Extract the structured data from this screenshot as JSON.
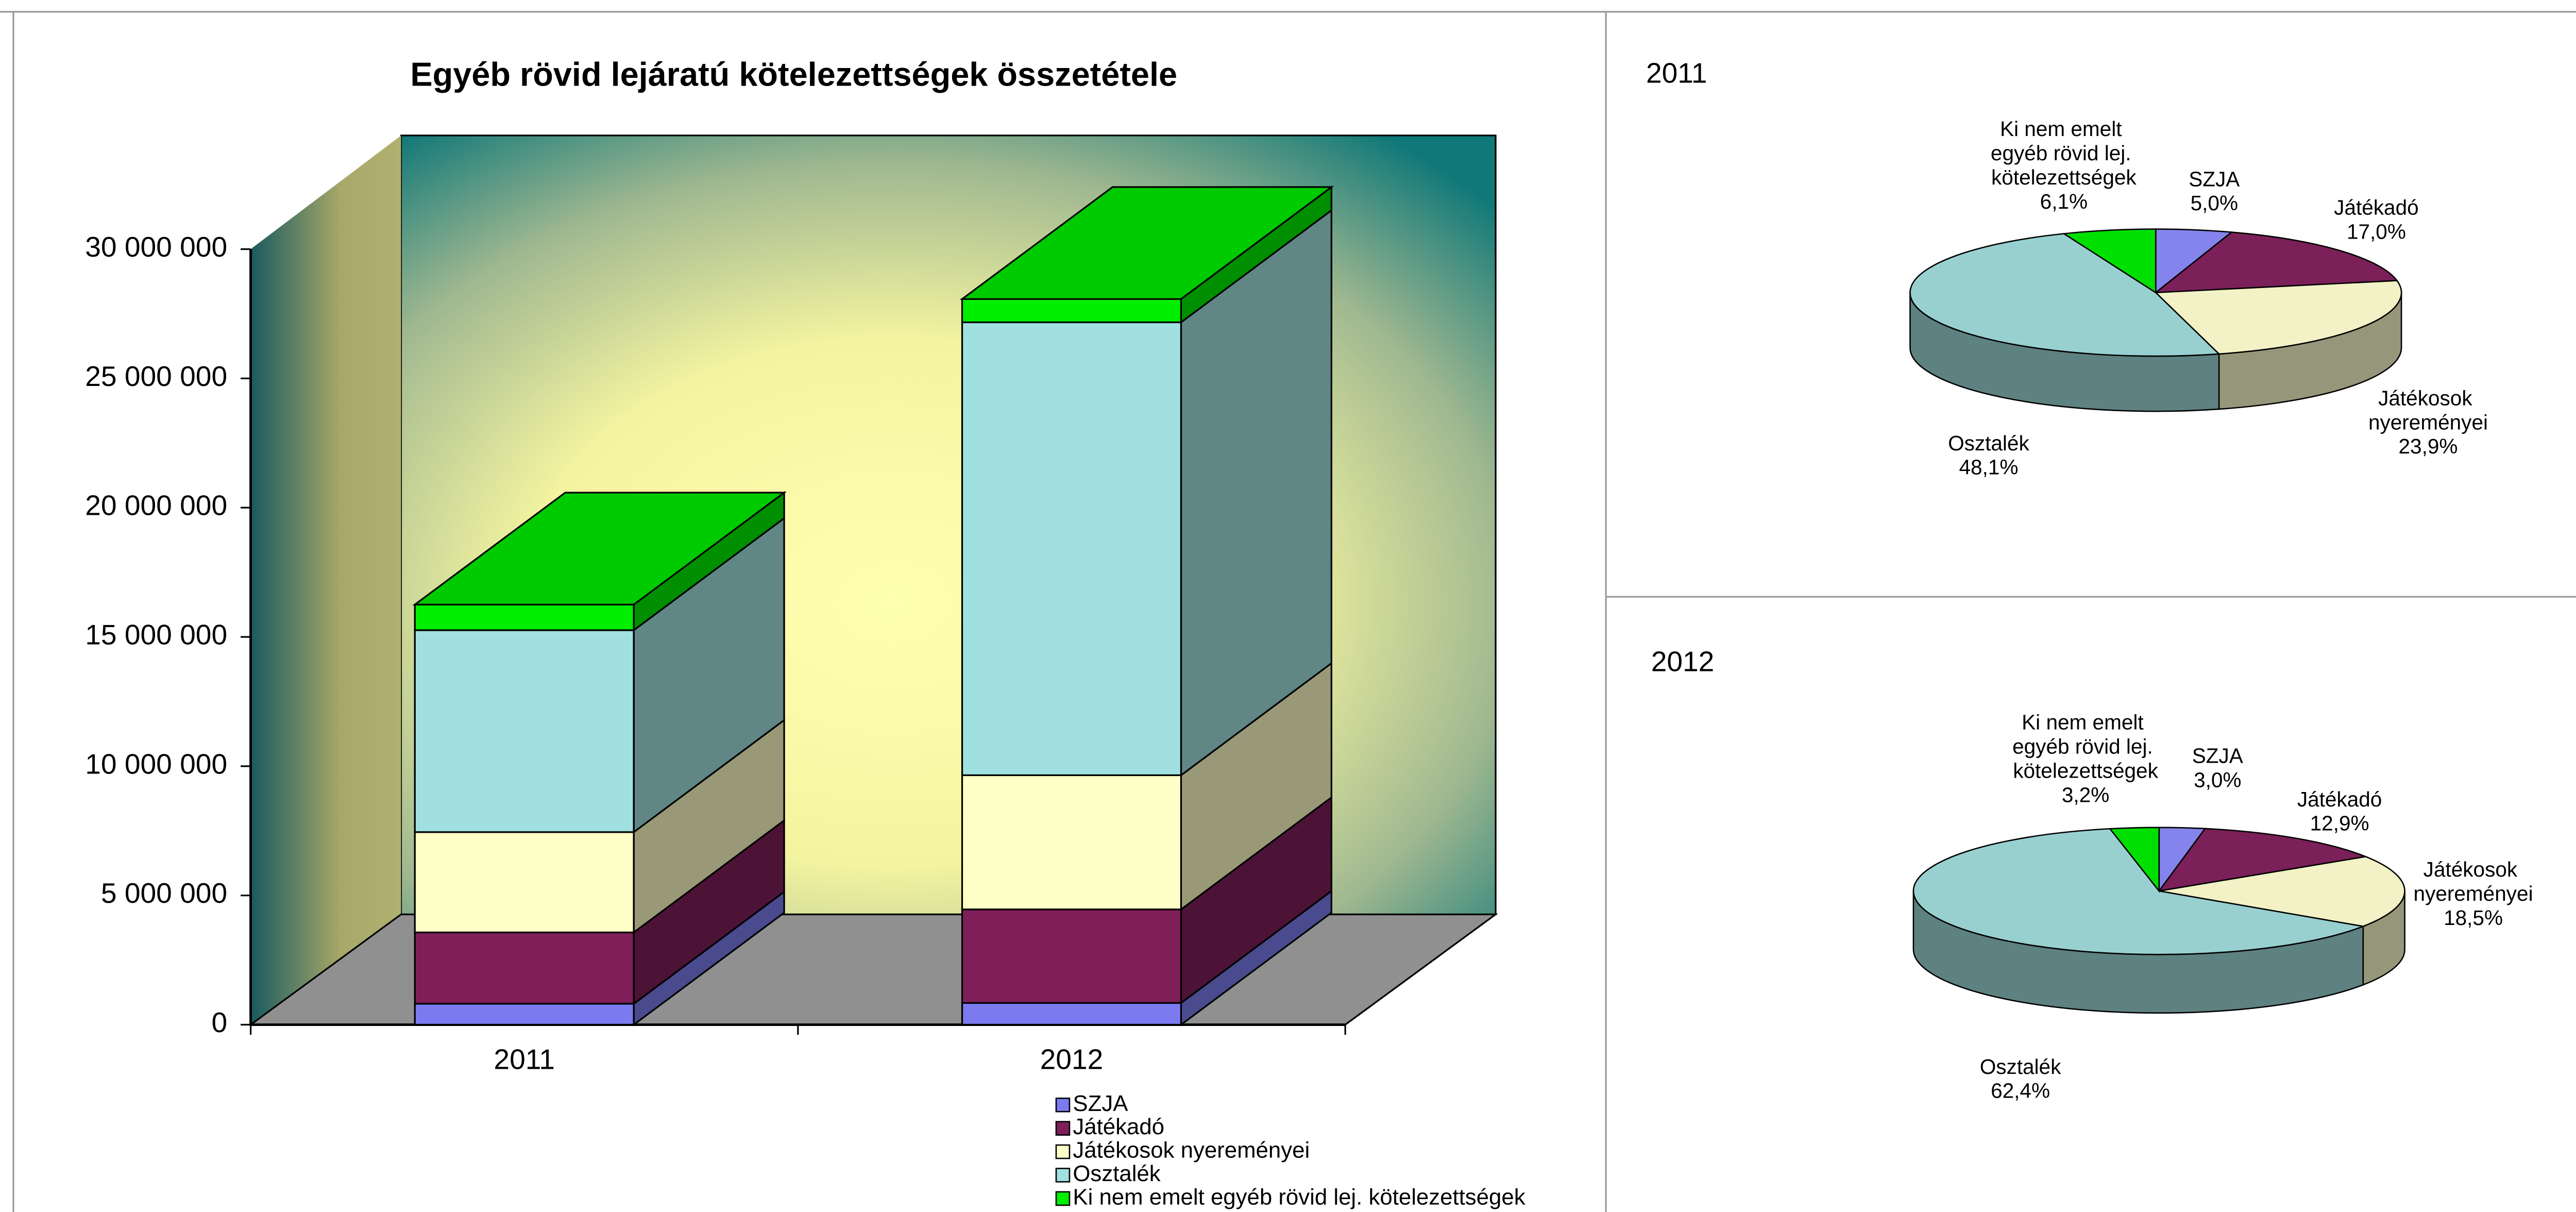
{
  "chart_data": [
    {
      "type": "bar",
      "stacked": true,
      "title": "Egyéb rövid lejáratú kötelezettségek összetétele",
      "categories": [
        "2011",
        "2012"
      ],
      "series": [
        {
          "name": "SZJA",
          "color": "#7b7bef",
          "values": [
            810000,
            840000
          ]
        },
        {
          "name": "Játékadó",
          "color": "#7f1f5a",
          "values": [
            2760000,
            3620000
          ]
        },
        {
          "name": "Játékosok nyereményei",
          "color": "#ffffc8",
          "values": [
            3880000,
            5190000
          ]
        },
        {
          "name": "Osztalék",
          "color": "#a0e0e0",
          "values": [
            7810000,
            17520000
          ]
        },
        {
          "name": "Ki nem emelt egyéb rövid lej. kötelezettségek",
          "color": "#00ee00",
          "values": [
            990000,
            900000
          ]
        }
      ],
      "ylim": [
        0,
        30000000
      ],
      "yticks": [
        0,
        {
          "value": 5000000,
          "label": "5 000 000"
        },
        {
          "value": 10000000,
          "label": "10 000 000"
        },
        {
          "value": 15000000,
          "label": "15 000 000"
        },
        {
          "value": 20000000,
          "label": "20 000 000"
        },
        {
          "value": 25000000,
          "label": "25 000 000"
        },
        {
          "value": 30000000,
          "label": "30 000 000"
        }
      ],
      "legend": "bottom"
    },
    {
      "type": "pie",
      "title": "2011",
      "categories": [
        "SZJA",
        "Játékadó",
        "Játékosok nyereményei",
        "Osztalék",
        "Ki nem emelt egyéb rövid lej. kötelezettségek"
      ],
      "values": [
        5.0,
        17.0,
        23.9,
        48.1,
        6.1
      ],
      "value_labels": [
        "5,0%",
        "17,0%",
        "23,9%",
        "48,1%",
        "6,1%"
      ],
      "colors": [
        "#8484ec",
        "#7b2058",
        "#f2f2c6",
        "#98d0d0",
        "#00e000"
      ]
    },
    {
      "type": "pie",
      "title": "2012",
      "categories": [
        "SZJA",
        "Játékadó",
        "Játékosok nyereményei",
        "Osztalék",
        "Ki nem emelt egyéb rövid lej. kötelezettségek"
      ],
      "values": [
        3.0,
        12.9,
        18.5,
        62.4,
        3.2
      ],
      "value_labels": [
        "3,0%",
        "12,9%",
        "18,5%",
        "62,4%",
        "3,2%"
      ],
      "colors": [
        "#8484ec",
        "#7b2058",
        "#f2f2c6",
        "#98d0d0",
        "#00e000"
      ]
    }
  ]
}
